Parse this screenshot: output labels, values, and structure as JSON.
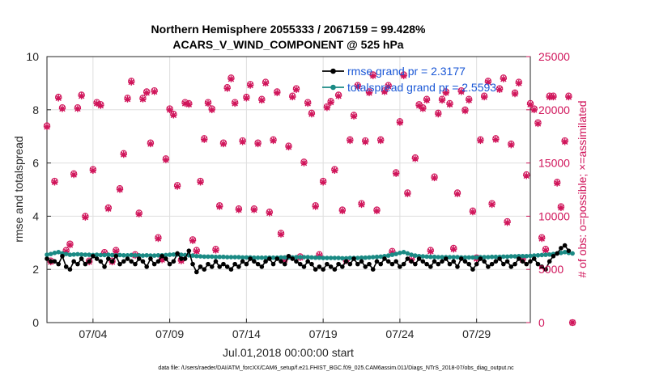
{
  "chart_data": {
    "type": "line",
    "title_line1": "Northern Hemisphere 2055333 / 2067159 = 99.428%",
    "title_line2": "ACARS_V_WIND_COMPONENT @ 525 hPa",
    "xlabel": "Jul.01,2018 00:00:00 start",
    "ylabel_left": "rmse and totalspread",
    "ylabel_right": "# of obs: o=possible; ×=assimilated",
    "xlim": [
      1,
      32.5
    ],
    "ylim_left": [
      0,
      10
    ],
    "ylim_right": [
      0,
      25000
    ],
    "x_ticks": [
      {
        "x": 4,
        "label": "07/04"
      },
      {
        "x": 9,
        "label": "07/09"
      },
      {
        "x": 14,
        "label": "07/14"
      },
      {
        "x": 19,
        "label": "07/19"
      },
      {
        "x": 24,
        "label": "07/24"
      },
      {
        "x": 29,
        "label": "07/29"
      }
    ],
    "y_ticks_left": [
      "0",
      "2",
      "4",
      "6",
      "8",
      "10"
    ],
    "y_ticks_right": [
      "0",
      "5000",
      "10000",
      "15000",
      "20000",
      "25000"
    ],
    "grid": true,
    "legend_position": "top-right",
    "legend": [
      {
        "label": "rmse grand pr = 2.3177",
        "color": "#000000"
      },
      {
        "label": "totalspread grand pr = 2.5593",
        "color": "#1a8a84"
      }
    ],
    "colors": {
      "rmse": "#000000",
      "spread": "#1a8a84",
      "obs": "#d0145a",
      "legend_text": "#1a57d6",
      "grid": "#dedede"
    },
    "series": [
      {
        "name": "rmse",
        "axis": "left",
        "x_start": 1,
        "dx": 0.25,
        "values": [
          2.4,
          2.3,
          2.3,
          2.2,
          2.5,
          2.1,
          2.0,
          2.3,
          2.2,
          2.4,
          2.2,
          2.3,
          2.5,
          2.4,
          2.3,
          2.1,
          2.4,
          2.3,
          2.5,
          2.2,
          2.3,
          2.4,
          2.3,
          2.2,
          2.4,
          2.3,
          2.1,
          2.4,
          2.2,
          2.3,
          2.5,
          2.4,
          2.2,
          2.3,
          2.6,
          2.4,
          2.4,
          2.7,
          2.2,
          1.9,
          2.1,
          2.0,
          2.2,
          2.1,
          2.3,
          2.1,
          2.2,
          2.1,
          2.0,
          2.2,
          2.1,
          2.3,
          2.2,
          2.4,
          2.3,
          2.2,
          2.1,
          2.3,
          2.4,
          2.2,
          2.4,
          2.3,
          2.2,
          2.5,
          2.4,
          2.3,
          2.2,
          2.1,
          2.3,
          2.2,
          2.0,
          2.1,
          2.0,
          2.2,
          2.1,
          2.0,
          2.2,
          2.1,
          2.3,
          2.2,
          2.4,
          2.2,
          2.3,
          2.1,
          2.2,
          2.0,
          2.3,
          2.2,
          2.4,
          2.3,
          2.2,
          2.3,
          2.1,
          2.2,
          2.4,
          2.3,
          2.2,
          2.4,
          2.3,
          2.2,
          2.1,
          2.3,
          2.2,
          2.3,
          2.4,
          2.2,
          2.3,
          2.1,
          2.4,
          2.3,
          2.2,
          2.0,
          2.2,
          2.4,
          2.3,
          2.1,
          2.2,
          2.3,
          2.4,
          2.2,
          2.3,
          2.1,
          2.2,
          2.4,
          2.3,
          2.2,
          2.3,
          2.4,
          2.2,
          2.1,
          2.0,
          2.3,
          2.5,
          2.6,
          2.8,
          2.9,
          2.7
        ]
      },
      {
        "name": "totalspread",
        "axis": "left",
        "x_start": 1,
        "dx": 0.25,
        "values": [
          2.55,
          2.58,
          2.62,
          2.65,
          2.6,
          2.58,
          2.55,
          2.56,
          2.57,
          2.56,
          2.55,
          2.55,
          2.54,
          2.55,
          2.54,
          2.54,
          2.55,
          2.54,
          2.53,
          2.54,
          2.53,
          2.53,
          2.54,
          2.53,
          2.53,
          2.52,
          2.53,
          2.52,
          2.52,
          2.53,
          2.53,
          2.54,
          2.55,
          2.56,
          2.56,
          2.55,
          2.54,
          2.53,
          2.52,
          2.5,
          2.49,
          2.48,
          2.48,
          2.48,
          2.47,
          2.47,
          2.47,
          2.46,
          2.46,
          2.46,
          2.46,
          2.45,
          2.45,
          2.45,
          2.44,
          2.44,
          2.44,
          2.44,
          2.44,
          2.44,
          2.44,
          2.45,
          2.45,
          2.45,
          2.45,
          2.46,
          2.46,
          2.46,
          2.46,
          2.45,
          2.44,
          2.44,
          2.43,
          2.43,
          2.43,
          2.43,
          2.43,
          2.42,
          2.42,
          2.43,
          2.43,
          2.43,
          2.44,
          2.44,
          2.45,
          2.46,
          2.47,
          2.48,
          2.5,
          2.52,
          2.55,
          2.58,
          2.62,
          2.65,
          2.6,
          2.55,
          2.52,
          2.5,
          2.49,
          2.48,
          2.47,
          2.47,
          2.46,
          2.46,
          2.46,
          2.46,
          2.46,
          2.46,
          2.45,
          2.45,
          2.45,
          2.45,
          2.45,
          2.46,
          2.46,
          2.46,
          2.47,
          2.47,
          2.47,
          2.48,
          2.48,
          2.49,
          2.49,
          2.5,
          2.5,
          2.5,
          2.51,
          2.52,
          2.53,
          2.54,
          2.55,
          2.56,
          2.58,
          2.6,
          2.62,
          2.65,
          2.62,
          2.6
        ]
      },
      {
        "name": "obs_possible",
        "axis": "right",
        "marker": "o",
        "x_start": 1,
        "dx": 0.25,
        "values": [
          18500,
          5800,
          13300,
          21200,
          20200,
          6800,
          7400,
          14000,
          20200,
          21400,
          10000,
          5800,
          14400,
          20700,
          20500,
          6600,
          10800,
          5800,
          6800,
          12600,
          15900,
          21100,
          22700,
          6400,
          10300,
          21100,
          21700,
          16900,
          21800,
          8000,
          6000,
          15400,
          20100,
          19600,
          12900,
          5900,
          20700,
          20600,
          7800,
          6800,
          13300,
          17300,
          20700,
          20100,
          6900,
          11000,
          16900,
          22100,
          23000,
          20700,
          10700,
          17100,
          21200,
          22400,
          10700,
          16900,
          21000,
          22600,
          10400,
          17200,
          21700,
          8400,
          6000,
          16600,
          21300,
          22000,
          6200,
          15100,
          20700,
          19700,
          11000,
          6400,
          13300,
          20300,
          20800,
          14400,
          21400,
          10600,
          5900,
          17200,
          19500,
          22300,
          11200,
          17100,
          21700,
          23300,
          10600,
          17200,
          21800,
          22300,
          6700,
          14100,
          18900,
          23300,
          12200,
          6000,
          15500,
          20500,
          20200,
          21000,
          6800,
          13700,
          19700,
          21000,
          21700,
          20600,
          7000,
          12200,
          21800,
          20000,
          21000,
          10500,
          6100,
          17200,
          21300,
          22700,
          11200,
          17300,
          22000,
          23000,
          9500,
          16800,
          21600,
          22600,
          6000,
          13900,
          20600,
          20100,
          18800,
          8000,
          6900,
          21300,
          21300,
          13200,
          10900,
          17100,
          21300,
          0
        ]
      },
      {
        "name": "obs_assimilated",
        "axis": "right",
        "marker": "x",
        "x_start": 1,
        "dx": 0.25,
        "values": [
          18400,
          5700,
          13200,
          21100,
          20100,
          6700,
          7300,
          13900,
          20100,
          21300,
          9900,
          5700,
          14300,
          20600,
          20400,
          6500,
          10700,
          5700,
          6700,
          12500,
          15800,
          21000,
          22600,
          6300,
          10200,
          21000,
          21600,
          16800,
          21700,
          7900,
          5900,
          15300,
          20000,
          19500,
          12800,
          5800,
          20600,
          20500,
          7700,
          6700,
          13200,
          17200,
          20600,
          20000,
          6800,
          10900,
          16800,
          22000,
          22900,
          20600,
          10600,
          17000,
          21100,
          22300,
          10600,
          16800,
          20900,
          22500,
          10300,
          17100,
          21600,
          8300,
          5900,
          16500,
          21200,
          21900,
          6100,
          15000,
          20600,
          19600,
          10900,
          6300,
          13200,
          20200,
          20700,
          14300,
          21300,
          10500,
          5800,
          17100,
          19400,
          22200,
          11100,
          17000,
          21600,
          23200,
          10500,
          17100,
          21700,
          22200,
          6600,
          14000,
          18800,
          23200,
          12100,
          5900,
          15400,
          20400,
          20100,
          20900,
          6700,
          13600,
          19600,
          20900,
          21600,
          20500,
          6900,
          12100,
          21700,
          19900,
          20900,
          10400,
          6000,
          17100,
          21200,
          22600,
          11100,
          17200,
          21900,
          22900,
          9400,
          16700,
          21500,
          22500,
          5900,
          13800,
          20500,
          20000,
          18700,
          7900,
          6800,
          21200,
          21200,
          13100,
          10800,
          17000,
          21200,
          0
        ]
      }
    ]
  },
  "footnote": "data file: /Users/raeder/DAI/ATM_forcXX/CAM6_setup/f.e21.FHIST_BGC.f09_025.CAM6assim.011/Diags_NTrS_2018-07/obs_diag_output.nc"
}
